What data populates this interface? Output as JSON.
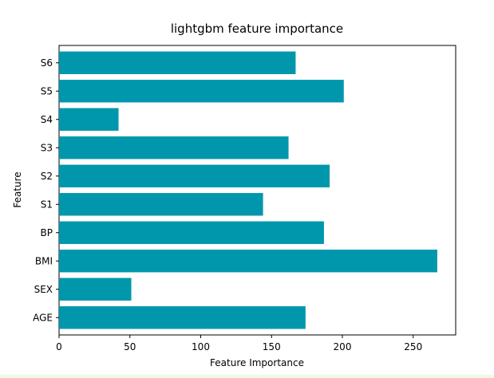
{
  "chart_data": {
    "type": "bar",
    "orientation": "horizontal",
    "title": "lightgbm feature importance",
    "xlabel": "Feature Importance",
    "ylabel": "Feature",
    "categories": [
      "AGE",
      "SEX",
      "BMI",
      "BP",
      "S1",
      "S2",
      "S3",
      "S4",
      "S5",
      "S6"
    ],
    "values": [
      174,
      51,
      267,
      187,
      144,
      191,
      162,
      42,
      201,
      167
    ],
    "xlim": [
      0,
      280
    ],
    "xticks": [
      0,
      50,
      100,
      150,
      200,
      250
    ],
    "grid": false,
    "bar_color": "#0097ac"
  }
}
